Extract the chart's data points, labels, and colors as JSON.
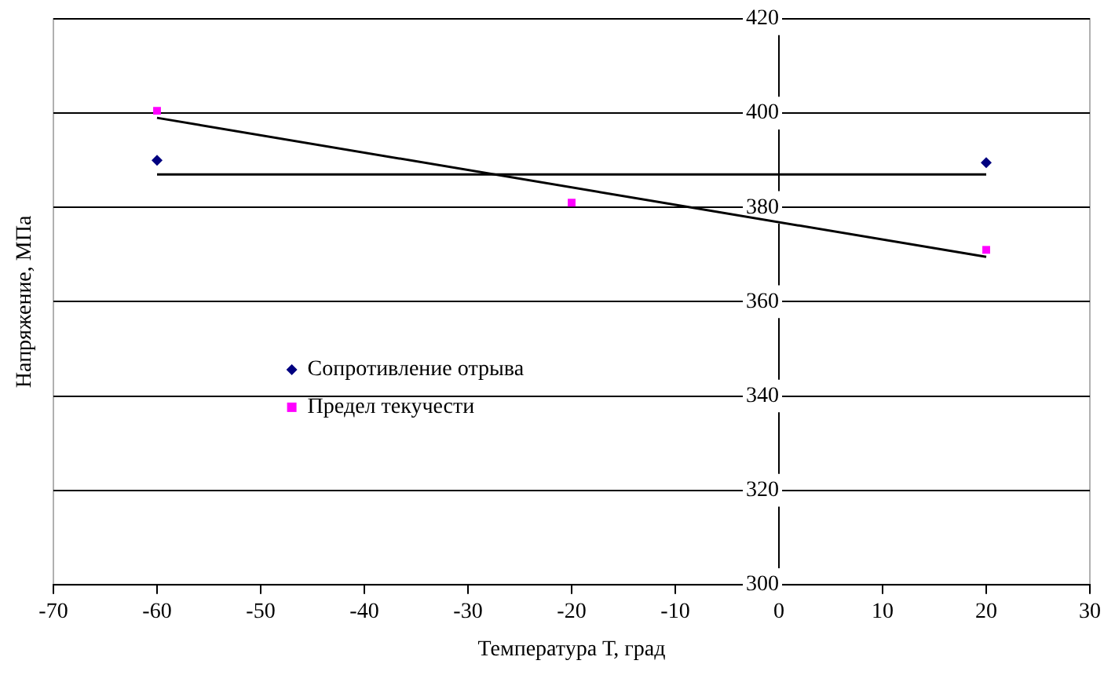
{
  "chart_data": {
    "type": "scatter",
    "xlabel": "Температура Т, град",
    "ylabel": "Напряжение, МПа",
    "xlim": [
      -70,
      30
    ],
    "xticks": [
      -70,
      -60,
      -50,
      -40,
      -30,
      -20,
      -10,
      0,
      10,
      20,
      30
    ],
    "ylim": [
      300,
      420
    ],
    "yticks": [
      300,
      320,
      340,
      360,
      380,
      400,
      420
    ],
    "grid": "y",
    "legend": "bottom left",
    "series": [
      {
        "name": "Сопротивление отрыва",
        "color": "#000080",
        "marker": "diamond",
        "x": [
          -60,
          20
        ],
        "values": [
          390,
          389.5
        ]
      },
      {
        "name": "Предел текучести",
        "color": "#ff00ff",
        "marker": "square",
        "x": [
          -60,
          -20,
          20
        ],
        "values": [
          400.5,
          381,
          371
        ]
      },
      {
        "type": "line",
        "color": "#000000",
        "marker": "none",
        "x": [
          -60,
          20
        ],
        "values": [
          387,
          387
        ]
      },
      {
        "type": "line",
        "color": "#000000",
        "marker": "none",
        "x": [
          -60,
          20
        ],
        "values": [
          399,
          369.5
        ]
      }
    ]
  }
}
